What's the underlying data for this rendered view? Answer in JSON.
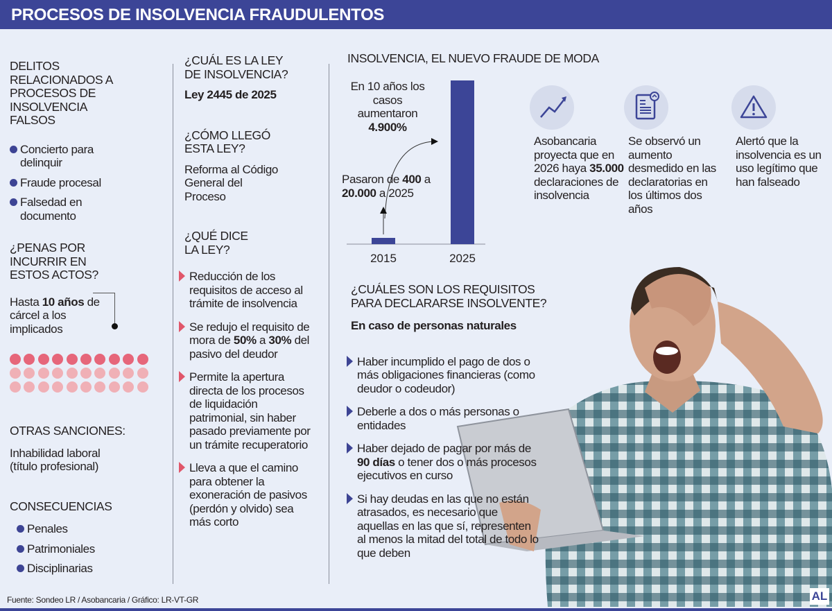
{
  "title": "PROCESOS DE INSOLVENCIA FRAUDULENTOS",
  "col1": {
    "delitos_title": "DELITOS RELACIONADOS A PROCESOS DE INSOLVENCIA FALSOS",
    "delitos": [
      "Concierto para delinquir",
      "Fraude procesal",
      "Falsedad en documento"
    ],
    "penas_title": "¿PENAS POR INCURRIR EN ESTOS ACTOS?",
    "penas_pre": "Hasta ",
    "penas_bold": "10 años",
    "penas_post": " de cárcel a los implicados",
    "penas_dots": {
      "highlighted": 10,
      "total": 30
    },
    "otras_title": "OTRAS SANCIONES:",
    "otras_text": "Inhabilidad laboral (título profesional)",
    "consec_title": "CONSECUENCIAS",
    "consecuencias": [
      "Penales",
      "Patrimoniales",
      "Disciplinarias"
    ]
  },
  "col2": {
    "q1": "¿CUÁL ES LA LEY DE INSOLVENCIA?",
    "a1": "Ley 2445 de 2025",
    "q2": "¿CÓMO LLEGÓ ESTA LEY?",
    "a2": "Reforma al Código General del Proceso",
    "q3": "¿QUÉ DICE LA LEY?",
    "items": [
      {
        "parts": [
          {
            "t": "Reducción de los requisitos de acceso al trámite de insolvencia"
          }
        ]
      },
      {
        "parts": [
          {
            "t": "Se redujo el requisito de mora de "
          },
          {
            "t": "50%",
            "b": true
          },
          {
            "t": " a "
          },
          {
            "t": "30%",
            "b": true
          },
          {
            "t": " del pasivo del deudor"
          }
        ]
      },
      {
        "parts": [
          {
            "t": "Permite la apertura directa de los procesos de liquidación patrimonial, sin haber pasado previamente por un trámite recuperatorio"
          }
        ]
      },
      {
        "parts": [
          {
            "t": "Lleva a que el camino para obtener la exoneración de pasivos (perdón y olvido) sea más corto"
          }
        ]
      }
    ]
  },
  "chart_data": {
    "type": "bar",
    "title": "INSOLVENCIA, EL NUEVO FRAUDE DE MODA",
    "categories": [
      "2015",
      "2025"
    ],
    "values": [
      400,
      20000
    ],
    "bar_color": "#3c4597",
    "annotation_growth": {
      "pre": "En 10 años los casos aumentaron ",
      "bold": "4.900%"
    },
    "annotation_values": {
      "t1": "Pasaron de ",
      "b1": "400",
      "t2": " a ",
      "b2": "20.000",
      "t3": " a 2025"
    }
  },
  "stats": [
    {
      "icon": "trend-up-icon",
      "parts": [
        {
          "t": "Asobancaria proyecta que en 2026 haya "
        },
        {
          "t": "35.000",
          "b": true
        },
        {
          "t": " declaraciones de insolvencia"
        }
      ]
    },
    {
      "icon": "document-icon",
      "parts": [
        {
          "t": "Se observó un aumento desmedido en las declaratorias en los últimos dos años"
        }
      ]
    },
    {
      "icon": "warning-icon",
      "parts": [
        {
          "t": "Alertó que la insolvencia es un uso legítimo que han falseado"
        }
      ]
    }
  ],
  "requisitos": {
    "title": "¿CUÁLES SON LOS REQUISITOS PARA DECLARARSE INSOLVENTE?",
    "subtitle": "En caso de personas naturales",
    "items": [
      {
        "parts": [
          {
            "t": "Haber incumplido el pago de dos o más obligaciones financieras (como deudor o codeudor)"
          }
        ]
      },
      {
        "parts": [
          {
            "t": "Deberle a dos o más personas o entidades"
          }
        ]
      },
      {
        "parts": [
          {
            "t": "Haber dejado de pagar por más de "
          },
          {
            "t": "90 días",
            "b": true
          },
          {
            "t": " o tener dos o más procesos ejecutivos en curso"
          }
        ]
      },
      {
        "parts": [
          {
            "t": "Si hay deudas en las que no están atrasados, es necesario que aquellas en las que sí, representen al menos la mitad del total de todo lo que deben"
          }
        ]
      }
    ]
  },
  "source": "Fuente: Sondeo LR / Asobancaria / Gráfico: LR-VT-GR",
  "logo": "AL",
  "colors": {
    "header": "#3c4597",
    "background": "#e9eef8",
    "accent_red": "#e0566a",
    "bullet": "#3d4494"
  }
}
